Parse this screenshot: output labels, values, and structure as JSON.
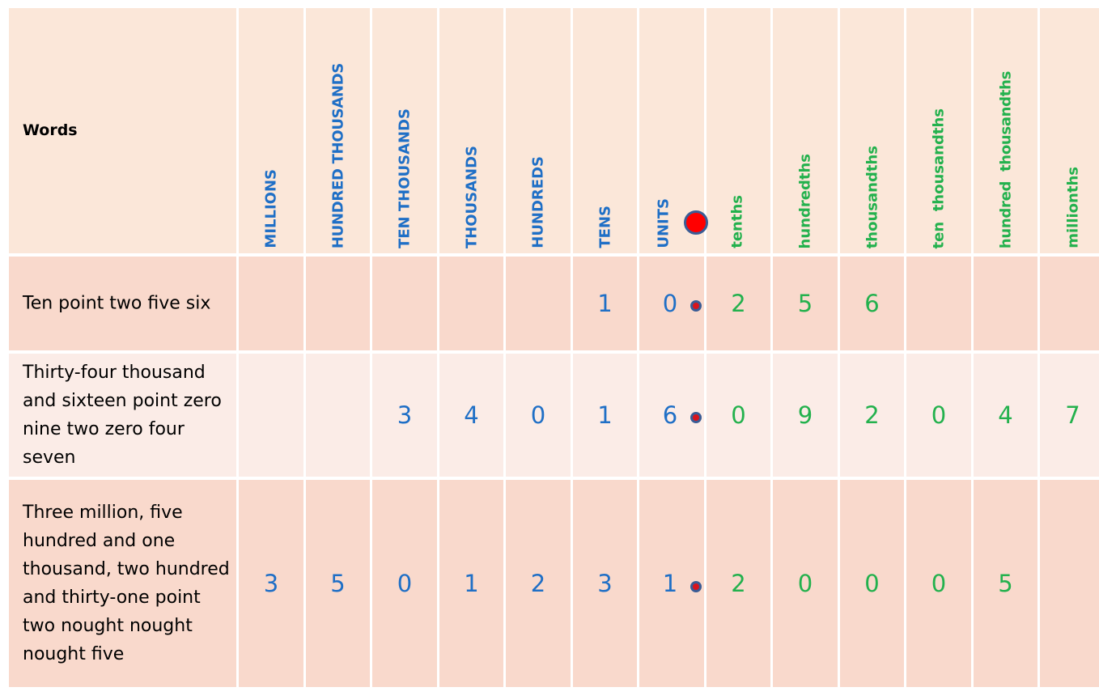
{
  "header": {
    "words_label": "Words",
    "columns": [
      {
        "label": "MILLIONS",
        "color": "#1f6fc6"
      },
      {
        "label": "HUNDRED THOUSANDS",
        "color": "#1f6fc6"
      },
      {
        "label": "TEN THOUSANDS",
        "color": "#1f6fc6"
      },
      {
        "label": "THOUSANDS",
        "color": "#1f6fc6"
      },
      {
        "label": "HUNDREDS",
        "color": "#1f6fc6"
      },
      {
        "label": "TENS",
        "color": "#1f6fc6"
      },
      {
        "label": "UNITS",
        "color": "#1f6fc6"
      },
      {
        "label": "tenths",
        "color": "#23b14d"
      },
      {
        "label": "hundredths",
        "color": "#23b14d"
      },
      {
        "label": "thousandths",
        "color": "#23b14d"
      },
      {
        "label": "ten  thousandths",
        "color": "#23b14d"
      },
      {
        "label": "hundred  thousandths",
        "color": "#23b14d"
      },
      {
        "label": "millionths",
        "color": "#23b14d"
      }
    ]
  },
  "rows": [
    {
      "words": "Ten point two five six",
      "digits": [
        "",
        "",
        "",
        "",
        "",
        "1",
        "0",
        "2",
        "5",
        "6",
        "",
        "",
        ""
      ]
    },
    {
      "words": "Thirty-four thousand and sixteen  point zero nine two  zero four seven",
      "digits": [
        "",
        "",
        "3",
        "4",
        "0",
        "1",
        "6",
        "0",
        "9",
        "2",
        "0",
        "4",
        "7"
      ]
    },
    {
      "words": "Three million,  five hundred and one thousand, two hundred and thirty-one  point two nought nought nought five",
      "digits": [
        "3",
        "5",
        "0",
        "1",
        "2",
        "3",
        "1",
        "2",
        "0",
        "0",
        "0",
        "5",
        ""
      ]
    }
  ],
  "colors": {
    "whole_number_digits": "#1f6fc6",
    "decimal_digits": "#23b14d",
    "decimal_point": "#ff0000",
    "header_bg": "#fbe7d9",
    "row_bg_odd": "#f9d9cc",
    "row_bg_even": "#fbece7"
  },
  "icons": {
    "decimal_point": "red-dot-icon"
  }
}
